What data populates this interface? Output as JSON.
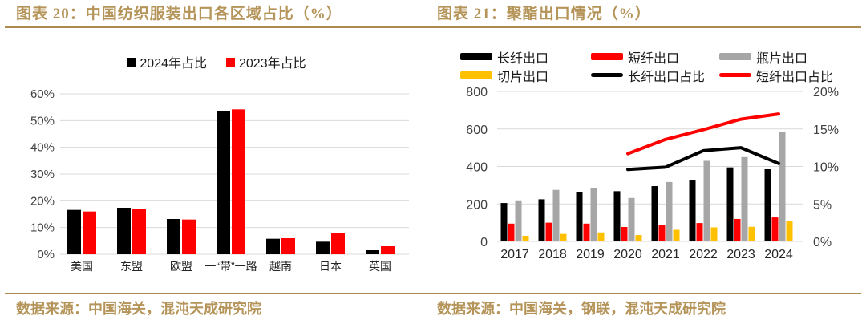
{
  "page": {
    "background": "#FFFFFF",
    "accent_gold": "#B59459",
    "rule_gold": "#AE8C50",
    "grid_color": "#D9D9D9",
    "axis_text_color": "#404040"
  },
  "left_panel": {
    "title": "图表 20：中国纺织服装出口各区域占比（%）",
    "source": "数据来源：中国海关，混沌天成研究院"
  },
  "right_panel": {
    "title": "图表 21：聚酯出口情况（%）",
    "source": "数据来源：中国海关，钢联，混沌天成研究院"
  },
  "chart_data": [
    {
      "type": "bar",
      "panel": "left",
      "title": "中国纺织服装出口各区域占比（%）",
      "categories": [
        "美国",
        "东盟",
        "欧盟",
        "一“带”一路",
        "越南",
        "日本",
        "英国"
      ],
      "series": [
        {
          "name": "2024年占比",
          "color": "#000000",
          "values": [
            16.6,
            17.4,
            13.2,
            53.5,
            5.8,
            4.7,
            1.5
          ]
        },
        {
          "name": "2023年占比",
          "color": "#FF0000",
          "values": [
            16.0,
            17.0,
            13.0,
            54.2,
            6.0,
            7.9,
            3.0
          ]
        }
      ],
      "ylim": [
        0,
        60
      ],
      "yticks": [
        0,
        10,
        20,
        30,
        40,
        50,
        60
      ],
      "ytick_suffix": "%",
      "grid": true,
      "legend_position": "top"
    },
    {
      "type": "bar+line",
      "panel": "right",
      "title": "聚酯出口情况（%）",
      "categories": [
        "2017",
        "2018",
        "2019",
        "2020",
        "2021",
        "2022",
        "2023",
        "2024"
      ],
      "bar_series": [
        {
          "name": "长纤出口",
          "color": "#000000",
          "values": [
            205,
            225,
            265,
            268,
            295,
            325,
            395,
            385
          ]
        },
        {
          "name": "短纤出口",
          "color": "#FF0000",
          "values": [
            95,
            100,
            95,
            77,
            86,
            98,
            120,
            128
          ]
        },
        {
          "name": "瓶片出口",
          "color": "#A6A6A6",
          "values": [
            215,
            275,
            285,
            232,
            317,
            430,
            450,
            585
          ]
        },
        {
          "name": "切片出口",
          "color": "#FFC000",
          "values": [
            30,
            40,
            48,
            34,
            62,
            75,
            78,
            107
          ]
        }
      ],
      "line_series": [
        {
          "name": "长纤出口占比",
          "color": "#000000",
          "values": [
            null,
            null,
            null,
            9.6,
            9.9,
            12.1,
            12.5,
            10.4
          ]
        },
        {
          "name": "短纤出口占比",
          "color": "#FF0000",
          "values": [
            null,
            null,
            null,
            11.7,
            13.6,
            14.9,
            16.3,
            17.0
          ]
        }
      ],
      "left_axis": {
        "min": 0,
        "max": 800,
        "ticks": [
          0,
          200,
          400,
          600,
          800
        ]
      },
      "right_axis": {
        "min": 0,
        "max": 20,
        "ticks": [
          0,
          5,
          10,
          15,
          20
        ],
        "suffix": "%"
      },
      "grid": true,
      "legend_position": "top"
    }
  ]
}
